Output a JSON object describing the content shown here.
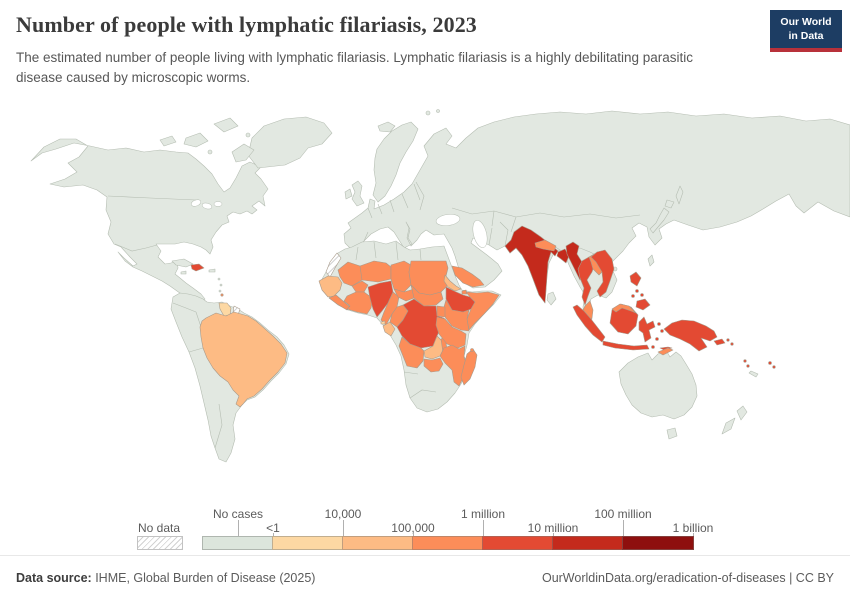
{
  "header": {
    "title": "Number of people with lymphatic filariasis, 2023",
    "logo": {
      "line1": "Our World",
      "line2": "in Data"
    }
  },
  "subtitle": "The estimated number of people living with lymphatic filariasis. Lymphatic filariasis is a highly debilitating parasitic disease caused by microscopic worms.",
  "legend": {
    "no_data_label": "No data",
    "boundary_labels": [
      "No cases",
      "<1",
      "10,000",
      "100,000",
      "1 million",
      "10 million",
      "100 million",
      "1 billion"
    ],
    "bin_colors": [
      "#dce5dc",
      "#fdd8a3",
      "#fdbb84",
      "#fc8d59",
      "#e34a33",
      "#c42a1c",
      "#8e0f0e"
    ]
  },
  "footer": {
    "source_label": "Data source:",
    "source": " IHME, Global Burden of Disease (2025)",
    "attribution": "OurWorldinData.org/eradication-of-diseases | CC BY"
  },
  "map": {
    "colors": {
      "land": "#e2e8e1",
      "border": "#b5bdb2",
      "ocean": "#ffffff",
      "hatch_line": "#c2c2c2"
    },
    "default_bin": "bin1",
    "regions": {
      "hispaniola": "bin5",
      "lesser-antilles": "bin4",
      "guyana": "bin2",
      "french-guiana": "no-data",
      "brazil": "bin3",
      "western-sahara": "no-data",
      "senegal-guinea": "bin3",
      "sierra-leone-liberia": "bin4",
      "mali": "bin4",
      "burkina-faso": "bin4",
      "ivory-coast-ghana": "bin4",
      "niger": "bin4",
      "nigeria": "bin5",
      "chad": "bin4",
      "cameroon": "bin4",
      "central-african-republic": "bin4",
      "sudan": "bin4",
      "south-sudan": "bin4",
      "eritrea": "bin3",
      "djibouti": "bin4",
      "ethiopia": "bin5",
      "somalia": "bin4",
      "kenya": "bin4",
      "uganda": "bin4",
      "congo": "bin4",
      "gabon": "bin3",
      "equatorial-guinea": "bin2",
      "drc": "bin5",
      "angola": "bin4",
      "zambia": "bin3",
      "malawi": "bin4",
      "tanzania": "bin4",
      "mozambique": "bin4",
      "zimbabwe": "bin4",
      "madagascar": "bin4",
      "comoros": "bin4",
      "yemen": "bin4",
      "india": "bin6",
      "nepal": "bin4",
      "bangladesh": "bin6",
      "myanmar": "bin6",
      "thailand": "bin5",
      "laos": "bin4",
      "vietnam": "bin5",
      "malaysia-peninsula": "bin4",
      "malaysia-borneo": "bin4",
      "indonesia-sumatra": "bin5",
      "indonesia-java": "bin5",
      "indonesia-kalimantan": "bin5",
      "indonesia-sulawesi": "bin5",
      "indonesia-maluku": "bin5",
      "indonesia-lesser-sunda": "bin5",
      "timor": "bin4",
      "new-guinea": "bin5",
      "new-britain": "bin5",
      "solomon-islands": "bin5",
      "philippines-luzon": "bin5",
      "philippines-visayas": "bin5",
      "philippines-mindanao": "bin5",
      "fiji": "bin5",
      "vanuatu": "bin5"
    }
  },
  "chart_data": {
    "type": "choropleth",
    "title": "Number of people with lymphatic filariasis, 2023",
    "year": 2023,
    "legend_labels": [
      "No cases",
      "<1",
      "10,000",
      "100,000",
      "1 million",
      "10 million",
      "100 million",
      "1 billion"
    ],
    "bin_ranges": {
      "bin1": "No cases / <1",
      "bin2": "<1 - 10,000",
      "bin3": "100,000 - 1 million",
      "bin4": "1 million - 10 million",
      "bin5": "10 million - 100 million",
      "bin6": "100 million - 1 billion",
      "bin7": "~1 billion (scale end, no country)"
    },
    "groups": {
      "100M_to_1B": [
        "India",
        "Bangladesh",
        "Myanmar"
      ],
      "10M_to_100M": [
        "Nigeria",
        "DR Congo",
        "Ethiopia",
        "Indonesia",
        "Philippines",
        "Papua New Guinea",
        "Thailand",
        "Vietnam",
        "Haiti/Dominican Republic"
      ],
      "1M_to_10M": [
        "Mali",
        "Niger",
        "Chad",
        "Sudan",
        "South Sudan",
        "Burkina Faso",
        "Ivory Coast",
        "Ghana",
        "Sierra Leone",
        "Liberia",
        "Cameroon",
        "Central African Republic",
        "Congo",
        "Angola",
        "Uganda",
        "Kenya",
        "Somalia",
        "Tanzania",
        "Malawi",
        "Mozambique",
        "Zimbabwe",
        "Madagascar",
        "Yemen",
        "Nepal",
        "Laos",
        "Malaysia",
        "Timor"
      ],
      "100k_to_1M": [
        "Brazil",
        "Senegal/Guinea cluster",
        "Eritrea",
        "Zambia",
        "Gabon"
      ],
      "lt_100k": [
        "Guyana",
        "Equatorial Guinea"
      ],
      "no_data": [
        "French Guiana",
        "Western Sahara"
      ],
      "no_cases": [
        "All countries shown in gray-green (Americas, Europe, Russia, China, Australia, etc.)"
      ]
    }
  }
}
